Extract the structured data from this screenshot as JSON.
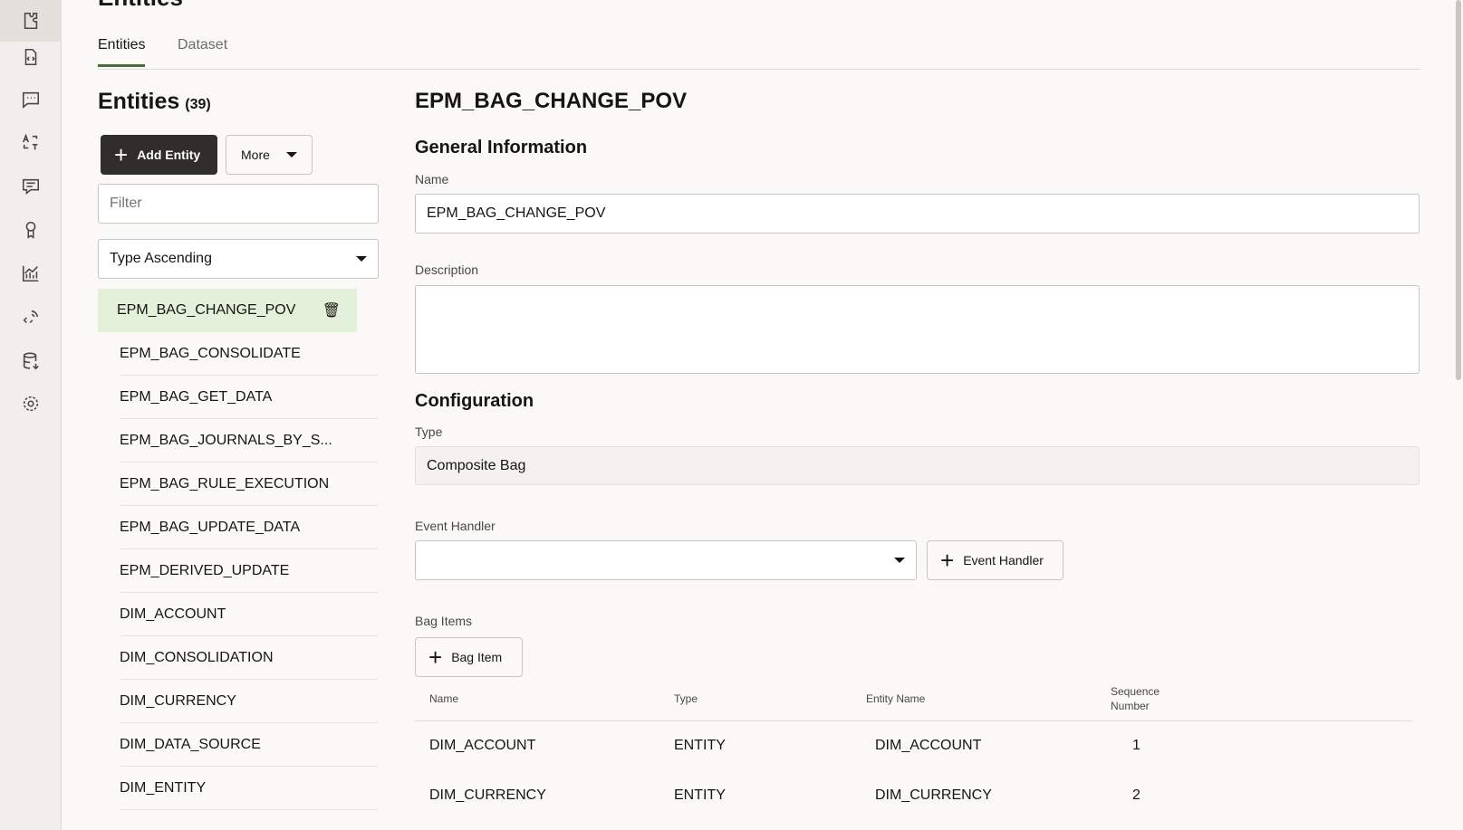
{
  "page_title": "Entities",
  "sidebar": {
    "icons": [
      "skill-icon",
      "document-code-icon",
      "chat-icon",
      "translate-icon",
      "conversation-icon",
      "award-icon",
      "analytics-icon",
      "integration-icon",
      "database-icon",
      "settings-icon"
    ]
  },
  "tabs": [
    {
      "label": "Entities",
      "active": true
    },
    {
      "label": "Dataset",
      "active": false
    }
  ],
  "list": {
    "title": "Entities",
    "count": "(39)",
    "add_label": "Add Entity",
    "more_label": "More",
    "filter_placeholder": "Filter",
    "sort_value": "Type Ascending",
    "items": [
      "EPM_BAG_CHANGE_POV",
      "EPM_BAG_CONSOLIDATE",
      "EPM_BAG_GET_DATA",
      "EPM_BAG_JOURNALS_BY_S...",
      "EPM_BAG_RULE_EXECUTION",
      "EPM_BAG_UPDATE_DATA",
      "EPM_DERIVED_UPDATE",
      "DIM_ACCOUNT",
      "DIM_CONSOLIDATION",
      "DIM_CURRENCY",
      "DIM_DATA_SOURCE",
      "DIM_ENTITY"
    ]
  },
  "detail": {
    "title": "EPM_BAG_CHANGE_POV",
    "general": "General Information",
    "name_label": "Name",
    "name_value": "EPM_BAG_CHANGE_POV",
    "description_label": "Description",
    "description_value": "",
    "configuration": "Configuration",
    "type_label": "Type",
    "type_value": "Composite Bag",
    "event_handler_label": "Event Handler",
    "event_handler_value": "",
    "event_handler_button": "Event Handler",
    "bag_items_label": "Bag Items",
    "bag_item_button": "Bag Item",
    "table": {
      "headers": [
        "Name",
        "Type",
        "Entity Name",
        "Sequence Number"
      ],
      "rows": [
        [
          "DIM_ACCOUNT",
          "ENTITY",
          "DIM_ACCOUNT",
          "1"
        ],
        [
          "DIM_CURRENCY",
          "ENTITY",
          "DIM_CURRENCY",
          "2"
        ]
      ]
    }
  },
  "colors": {
    "accent": "#4b6b3b",
    "selected_bg": "#e4f1da",
    "dark_button": "#312d2a"
  }
}
